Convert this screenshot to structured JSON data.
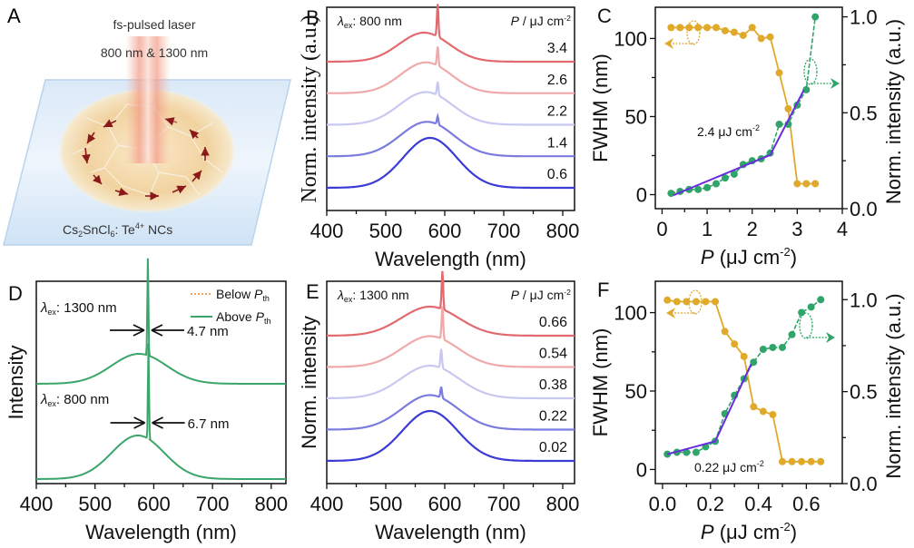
{
  "panel_labels": {
    "A": "A",
    "B": "B",
    "C": "C",
    "D": "D",
    "E": "E",
    "F": "F"
  },
  "panelA": {
    "laser_line1": "fs-pulsed laser",
    "laser_line2": "800 nm & 1300 nm",
    "sample_label_prefix": "Cs",
    "sample_sub1": "2",
    "sample_mid": "SnCl",
    "sample_sub2": "6",
    "sample_colon": ": Te",
    "sample_sup": "4+",
    "sample_suffix": " NCs"
  },
  "colors": {
    "orange": "#e0a92a",
    "green": "#2fa56a",
    "purple": "#6a2be0",
    "below": "#e8892a",
    "above": "#3aa66b",
    "series_high": "#e26a6e",
    "series_mid_high": "#f0a9aa",
    "series_mid": "#c8c8f0",
    "series_mid_low": "#7b7be0",
    "series_low": "#3b3bd6"
  },
  "chart_data": [
    {
      "id": "B",
      "type": "line",
      "title": "",
      "annotation": "λex: 800 nm",
      "legend_title": "P / μJ cm-2",
      "xlabel": "Wavelength (nm)",
      "ylabel": "Norm. intensity (a.u.)",
      "xlim": [
        400,
        820
      ],
      "xticks": [
        "400",
        "500",
        "600",
        "700",
        "800"
      ],
      "series": [
        {
          "name": "0.6",
          "peak_nm": 575,
          "fwhm_nm": 107,
          "spike_nm": null,
          "spike_rel": 0
        },
        {
          "name": "1.4",
          "peak_nm": 570,
          "fwhm_nm": 107,
          "spike_nm": 588,
          "spike_rel": 0.15
        },
        {
          "name": "2.2",
          "peak_nm": 568,
          "fwhm_nm": 106,
          "spike_nm": 588,
          "spike_rel": 0.25
        },
        {
          "name": "2.6",
          "peak_nm": 568,
          "fwhm_nm": 100,
          "spike_nm": 588,
          "spike_rel": 0.35
        },
        {
          "name": "3.4",
          "peak_nm": 565,
          "fwhm_nm": 100,
          "spike_nm": 588,
          "spike_rel": 0.6
        }
      ]
    },
    {
      "id": "C",
      "type": "scatter",
      "xlabel": "P (μJ cm-2)",
      "ylabel_left": "FWHM (nm)",
      "ylabel_right": "Norm. intensity (a.u.)",
      "xlim": [
        -0.15,
        4
      ],
      "ylim_left": [
        -9,
        120
      ],
      "ylim_right": [
        0,
        1.05
      ],
      "xticks": [
        "0",
        "1",
        "2",
        "3",
        "4"
      ],
      "yticks_left": [
        "0",
        "50",
        "100"
      ],
      "yticks_right": [
        "0.0",
        "0.5",
        "1.0"
      ],
      "annotation": "2.4 μJ cm-2",
      "fwhm": {
        "x": [
          0.2,
          0.4,
          0.6,
          0.8,
          1.0,
          1.2,
          1.4,
          1.6,
          1.8,
          2.0,
          2.2,
          2.4,
          2.6,
          2.8,
          3.0,
          3.2,
          3.4
        ],
        "y": [
          107,
          107,
          107,
          107,
          107,
          107,
          105,
          104,
          102,
          107,
          100,
          101,
          78,
          55,
          7,
          7,
          7
        ]
      },
      "intensity": {
        "x": [
          0.2,
          0.4,
          0.6,
          0.8,
          1.0,
          1.2,
          1.4,
          1.6,
          1.8,
          2.0,
          2.2,
          2.4,
          2.6,
          2.8,
          3.0,
          3.2,
          3.4
        ],
        "y": [
          0.08,
          0.09,
          0.1,
          0.1,
          0.11,
          0.13,
          0.16,
          0.18,
          0.23,
          0.25,
          0.26,
          0.29,
          0.44,
          0.44,
          0.54,
          0.62,
          1.0
        ]
      },
      "fit": {
        "x": [
          0.25,
          2.4,
          3.15
        ],
        "y": [
          0.07,
          0.28,
          0.62
        ]
      }
    },
    {
      "id": "D",
      "type": "line",
      "xlabel": "Wavelength (nm)",
      "ylabel": "Intensity",
      "xlim": [
        400,
        825
      ],
      "xticks": [
        "400",
        "500",
        "600",
        "700",
        "800"
      ],
      "legend": [
        "Below Pth",
        "Above Pth"
      ],
      "annotations": [
        {
          "label": "λex: 1300 nm",
          "width": "4.7 nm"
        },
        {
          "label": "λex: 800 nm",
          "width": "6.7 nm"
        }
      ],
      "series": [
        {
          "name": "1300 nm",
          "peak_nm": 575,
          "fwhm_nm": 110,
          "spike_nm": 590,
          "spike_rel": 2.3
        },
        {
          "name": "800 nm",
          "peak_nm": 573,
          "fwhm_nm": 105,
          "spike_nm": 591,
          "spike_rel": 1.3
        }
      ]
    },
    {
      "id": "E",
      "type": "line",
      "annotation": "λex: 1300 nm",
      "legend_title": "P / μJ cm-2",
      "xlabel": "Wavelength (nm)",
      "ylabel": "Norm. intensity",
      "xlim": [
        400,
        820
      ],
      "xticks": [
        "400",
        "500",
        "600",
        "700",
        "800"
      ],
      "series": [
        {
          "name": "0.02",
          "peak_nm": 575,
          "fwhm_nm": 110,
          "spike_nm": null,
          "spike_rel": 0
        },
        {
          "name": "0.22",
          "peak_nm": 575,
          "fwhm_nm": 112,
          "spike_nm": 594,
          "spike_rel": 0.2
        },
        {
          "name": "0.38",
          "peak_nm": 575,
          "fwhm_nm": 115,
          "spike_nm": 594,
          "spike_rel": 0.35
        },
        {
          "name": "0.54",
          "peak_nm": 575,
          "fwhm_nm": 112,
          "spike_nm": 596,
          "spike_rel": 0.6
        },
        {
          "name": "0.66",
          "peak_nm": 575,
          "fwhm_nm": 115,
          "spike_nm": 596,
          "spike_rel": 0.7
        }
      ]
    },
    {
      "id": "F",
      "type": "scatter",
      "xlabel": "P (μJ cm-2)",
      "ylabel_left": "FWHM (nm)",
      "ylabel_right": "Norm. intensity (a.u.)",
      "xlim": [
        -0.03,
        0.75
      ],
      "ylim_left": [
        -9,
        120
      ],
      "ylim_right": [
        0,
        1.1
      ],
      "xticks": [
        "0.0",
        "0.2",
        "0.4",
        "0.6"
      ],
      "yticks_left": [
        "0",
        "50",
        "100"
      ],
      "yticks_right": [
        "0.0",
        "0.5",
        "1.0"
      ],
      "annotation": "0.22 μJ cm-2",
      "fwhm": {
        "x": [
          0.02,
          0.06,
          0.1,
          0.14,
          0.18,
          0.22,
          0.26,
          0.3,
          0.34,
          0.38,
          0.42,
          0.46,
          0.5,
          0.54,
          0.58,
          0.62,
          0.66
        ],
        "y": [
          108,
          107,
          107,
          107,
          107,
          107,
          88,
          80,
          72,
          40,
          37,
          35,
          5,
          5,
          5,
          5,
          5
        ]
      },
      "intensity": {
        "x": [
          0.02,
          0.06,
          0.1,
          0.14,
          0.18,
          0.22,
          0.26,
          0.3,
          0.34,
          0.38,
          0.42,
          0.46,
          0.5,
          0.54,
          0.58,
          0.62,
          0.66
        ],
        "y": [
          0.16,
          0.17,
          0.17,
          0.17,
          0.2,
          0.23,
          0.38,
          0.48,
          0.57,
          0.66,
          0.73,
          0.74,
          0.74,
          0.81,
          0.93,
          0.96,
          1.0
        ]
      },
      "fit": {
        "x": [
          0.02,
          0.22,
          0.37
        ],
        "y": [
          0.16,
          0.23,
          0.65
        ]
      }
    }
  ]
}
